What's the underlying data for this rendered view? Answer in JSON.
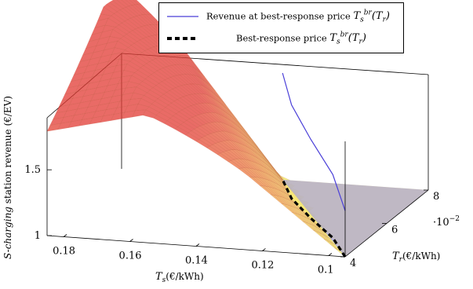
{
  "chart_data": {
    "type": "surface3d",
    "legend": [
      {
        "label": "Revenue at best-response price",
        "math": "T_s^{br}(T_r)",
        "color": "#4a3fd8",
        "style": "solid"
      },
      {
        "label": "Best-response price",
        "math": "T_s^{br}(T_r)",
        "color": "#000000",
        "style": "dashed"
      }
    ],
    "x_axis": {
      "label_prefix": "T",
      "label_sub": "s",
      "label_unit": "(€/kWh)",
      "ticks": [
        "0.18",
        "0.16",
        "0.14",
        "0.12",
        "0.1"
      ],
      "tick_values": [
        0.18,
        0.16,
        0.14,
        0.12,
        0.1
      ],
      "range": [
        0.185,
        0.095
      ]
    },
    "y_axis": {
      "label_prefix": "T",
      "label_sub": "r",
      "label_unit": "(€/kWh)",
      "ticks": [
        "4",
        "6",
        "8"
      ],
      "tick_values": [
        4,
        6,
        8
      ],
      "range": [
        4,
        8
      ],
      "multiplier": "·10",
      "multiplier_exp": "−2"
    },
    "z_axis": {
      "label_italic": "S-charging",
      "label_rest": " station revenue (€/EV)",
      "ticks": [
        "1",
        "1.5"
      ],
      "tick_values": [
        1.0,
        1.5
      ],
      "range": [
        1.0,
        1.85
      ]
    },
    "surface": {
      "description_colormap": [
        "#f2f25e",
        "#f2c752",
        "#ef9a45",
        "#e96a3c",
        "#e23a33"
      ]
    },
    "best_response_curve": {
      "T_r": [
        4,
        5,
        6,
        7,
        8
      ],
      "T_s": [
        0.095,
        0.105,
        0.118,
        0.13,
        0.139
      ],
      "revenue_at_best_response": [
        1.35,
        1.48,
        1.6,
        1.71,
        1.81
      ]
    }
  }
}
